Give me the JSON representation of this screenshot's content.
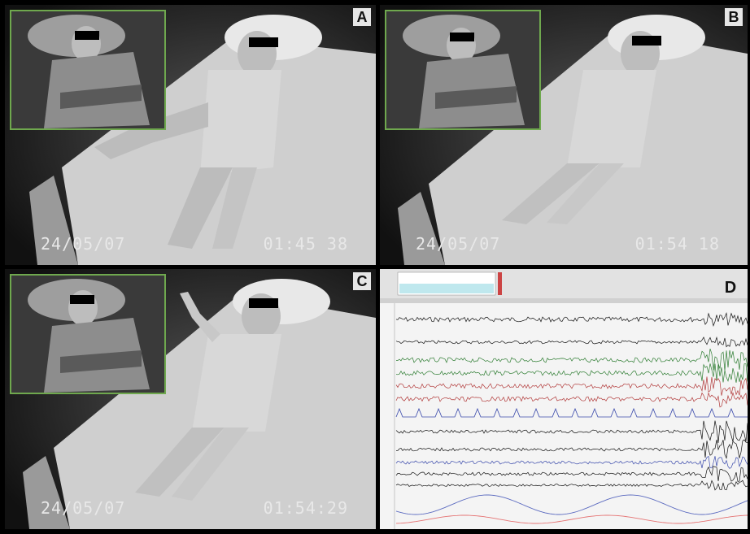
{
  "panels": [
    {
      "label": "A",
      "date": "24/05/07",
      "time": "01:45 38"
    },
    {
      "label": "B",
      "date": "24/05/07",
      "time": "01:54 18"
    },
    {
      "label": "C",
      "date": "24/05/07",
      "time": "01:54:29"
    }
  ],
  "psg_panel": {
    "label": "D"
  },
  "colors": {
    "inset_border": "#6fa84e",
    "eeg_black": "#111111",
    "eeg_green": "#2e7d32",
    "eeg_red": "#b23a3a",
    "ecg_blue": "#3949ab",
    "resp_blue": "#5c6bc0",
    "resp_red": "#e57373"
  }
}
